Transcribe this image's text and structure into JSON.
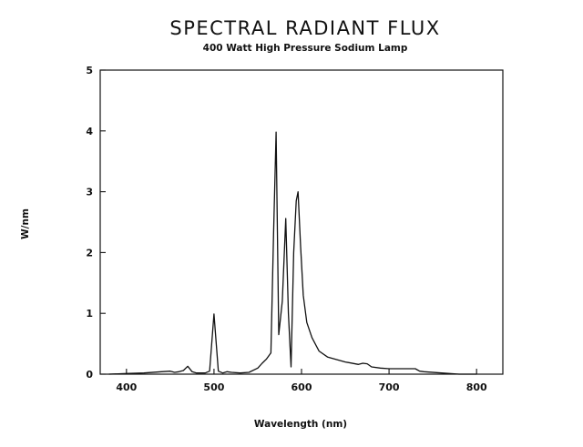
{
  "chart_data": {
    "type": "line",
    "title": "SPECTRAL RADIANT FLUX",
    "subtitle": "400 Watt High Pressure Sodium Lamp",
    "xlabel": "Wavelength (nm)",
    "ylabel": "W/nm",
    "xlim": [
      370,
      830
    ],
    "ylim": [
      0,
      5
    ],
    "x_ticks": [
      400,
      500,
      600,
      700,
      800
    ],
    "y_ticks": [
      0,
      1,
      2,
      3,
      4,
      5
    ],
    "grid": false,
    "legend": "none",
    "line_color": "#111111",
    "series": [
      {
        "x": [
          380,
          400,
          420,
          440,
          450,
          455,
          460,
          465,
          470,
          475,
          480,
          490,
          495,
          500,
          505,
          510,
          515,
          520,
          530,
          540,
          550,
          555,
          560,
          565,
          568,
          571,
          574,
          578,
          582,
          585,
          588,
          591,
          594,
          596,
          599,
          602,
          606,
          612,
          620,
          630,
          650,
          665,
          670,
          675,
          680,
          690,
          700,
          720,
          730,
          735,
          740,
          760,
          780,
          800
        ],
        "y": [
          0.0,
          0.01,
          0.02,
          0.04,
          0.05,
          0.03,
          0.04,
          0.06,
          0.13,
          0.04,
          0.02,
          0.02,
          0.05,
          0.99,
          0.05,
          0.02,
          0.04,
          0.03,
          0.02,
          0.03,
          0.1,
          0.18,
          0.25,
          0.35,
          2.3,
          3.98,
          0.65,
          1.2,
          2.56,
          1.0,
          0.12,
          2.0,
          2.85,
          3.0,
          2.1,
          1.3,
          0.85,
          0.6,
          0.38,
          0.28,
          0.2,
          0.16,
          0.18,
          0.17,
          0.12,
          0.1,
          0.09,
          0.09,
          0.09,
          0.05,
          0.04,
          0.02,
          0.0,
          0.0
        ]
      }
    ]
  }
}
